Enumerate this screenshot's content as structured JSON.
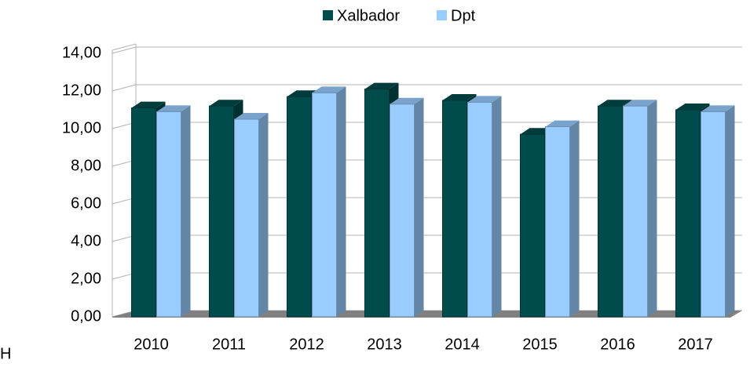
{
  "chart_data": {
    "type": "bar3d",
    "categories": [
      "2010",
      "2011",
      "2012",
      "2013",
      "2014",
      "2015",
      "2016",
      "2017"
    ],
    "series": [
      {
        "name": "Xalbador",
        "color": "#004b4b",
        "values": [
          11.1,
          11.2,
          11.7,
          12.1,
          11.5,
          9.7,
          11.2,
          11.0
        ]
      },
      {
        "name": "Dpt",
        "color": "#99ccff",
        "values": [
          10.9,
          10.5,
          11.9,
          11.3,
          11.4,
          10.1,
          11.2,
          10.9
        ]
      }
    ],
    "ylim": [
      0,
      14
    ],
    "yticks": [
      {
        "value": 0,
        "label": "0,00"
      },
      {
        "value": 2,
        "label": "2,00"
      },
      {
        "value": 4,
        "label": "4,00"
      },
      {
        "value": 6,
        "label": "6,00"
      },
      {
        "value": 8,
        "label": "8,00"
      },
      {
        "value": 10,
        "label": "10,00"
      },
      {
        "value": 12,
        "label": "12,00"
      },
      {
        "value": 14,
        "label": "14,00"
      }
    ],
    "grid": true,
    "legend": "top",
    "annotations": [
      "H"
    ]
  }
}
